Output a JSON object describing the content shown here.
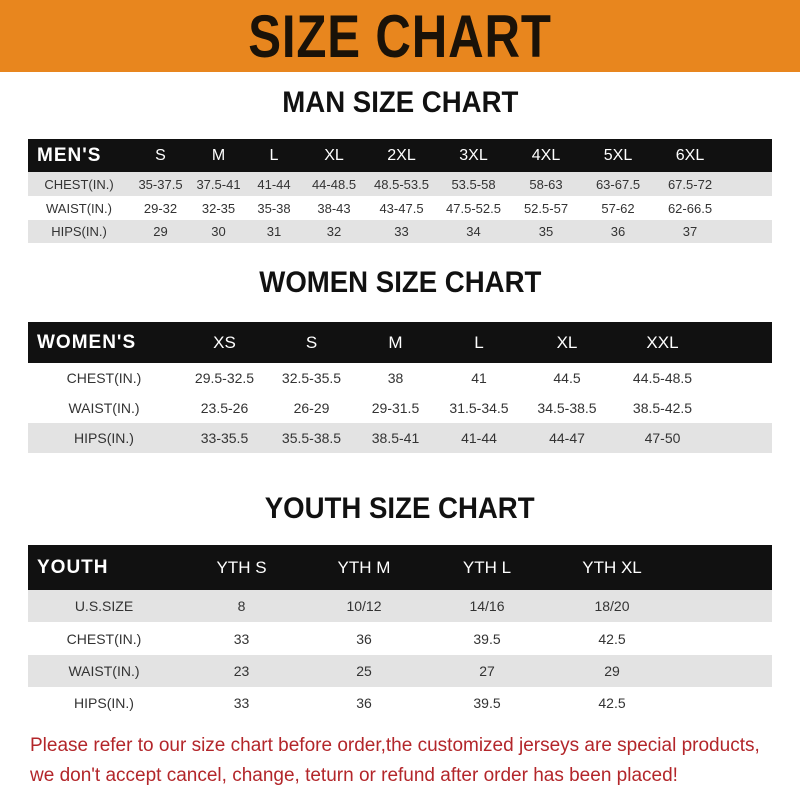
{
  "banner": "SIZE CHART",
  "men": {
    "title": "MAN SIZE CHART",
    "header": [
      "MEN'S",
      "S",
      "M",
      "L",
      "XL",
      "2XL",
      "3XL",
      "4XL",
      "5XL",
      "6XL"
    ],
    "rows": [
      [
        "CHEST(IN.)",
        "35-37.5",
        "37.5-41",
        "41-44",
        "44-48.5",
        "48.5-53.5",
        "53.5-58",
        "58-63",
        "63-67.5",
        "67.5-72"
      ],
      [
        "WAIST(IN.)",
        "29-32",
        "32-35",
        "35-38",
        "38-43",
        "43-47.5",
        "47.5-52.5",
        "52.5-57",
        "57-62",
        "62-66.5"
      ],
      [
        "HIPS(IN.)",
        "29",
        "30",
        "31",
        "32",
        "33",
        "34",
        "35",
        "36",
        "37"
      ]
    ]
  },
  "women": {
    "title": "WOMEN SIZE CHART",
    "header": [
      "WOMEN'S",
      "XS",
      "S",
      "M",
      "L",
      "XL",
      "XXL"
    ],
    "rows": [
      [
        "CHEST(IN.)",
        "29.5-32.5",
        "32.5-35.5",
        "38",
        "41",
        "44.5",
        "44.5-48.5"
      ],
      [
        "WAIST(IN.)",
        "23.5-26",
        "26-29",
        "29-31.5",
        "31.5-34.5",
        "34.5-38.5",
        "38.5-42.5"
      ],
      [
        "HIPS(IN.)",
        "33-35.5",
        "35.5-38.5",
        "38.5-41",
        "41-44",
        "44-47",
        "47-50"
      ]
    ]
  },
  "youth": {
    "title": "YOUTH SIZE CHART",
    "header": [
      "YOUTH",
      "YTH S",
      "YTH M",
      "YTH L",
      "YTH XL"
    ],
    "rows": [
      [
        "U.S.SIZE",
        "8",
        "10/12",
        "14/16",
        "18/20"
      ],
      [
        "CHEST(IN.)",
        "33",
        "36",
        "39.5",
        "42.5"
      ],
      [
        "WAIST(IN.)",
        "23",
        "25",
        "27",
        "29"
      ],
      [
        "HIPS(IN.)",
        "33",
        "36",
        "39.5",
        "42.5"
      ]
    ]
  },
  "notice": {
    "line1": "Please refer to our size chart before order,the customized jerseys are special products,",
    "line2": "we don't accept cancel, change, teturn or refund after order has been placed!"
  },
  "colors": {
    "banner": "#e8861e",
    "header_row": "#111111",
    "stripe": "#e3e3e3",
    "notice": "#b3262a"
  }
}
